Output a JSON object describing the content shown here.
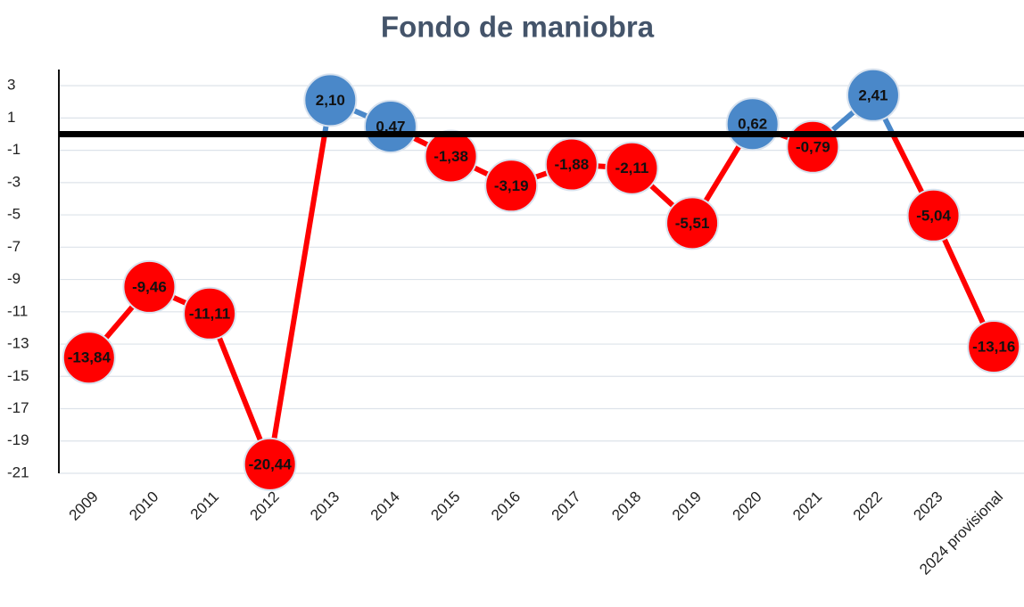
{
  "chart_data": {
    "type": "line",
    "title": "Fondo de maniobra",
    "categories": [
      "2009",
      "2010",
      "2011",
      "2012",
      "2013",
      "2014",
      "2015",
      "2016",
      "2017",
      "2018",
      "2019",
      "2020",
      "2021",
      "2022",
      "2023",
      "2024 provisional"
    ],
    "values": [
      -13.84,
      -9.46,
      -11.11,
      -20.44,
      2.1,
      0.47,
      -1.38,
      -3.19,
      -1.88,
      -2.11,
      -5.51,
      0.62,
      -0.79,
      2.41,
      -5.04,
      -13.16
    ],
    "value_labels": [
      "-13,84",
      "-9,46",
      "-11,11",
      "-20,44",
      "2,10",
      "0,47",
      "-1,38",
      "-3,19",
      "-1,88",
      "-2,11",
      "-5,51",
      "0,62",
      "-0,79",
      "2,41",
      "-5,04",
      "-13,16"
    ],
    "ylim": [
      -21,
      4
    ],
    "yticks": [
      3,
      1,
      -1,
      -3,
      -5,
      -7,
      -9,
      -11,
      -13,
      -15,
      -17,
      -19,
      -21
    ],
    "grid": true,
    "zero_line": true,
    "positive_color": "#4a88c9",
    "negative_color": "#ff0000"
  }
}
